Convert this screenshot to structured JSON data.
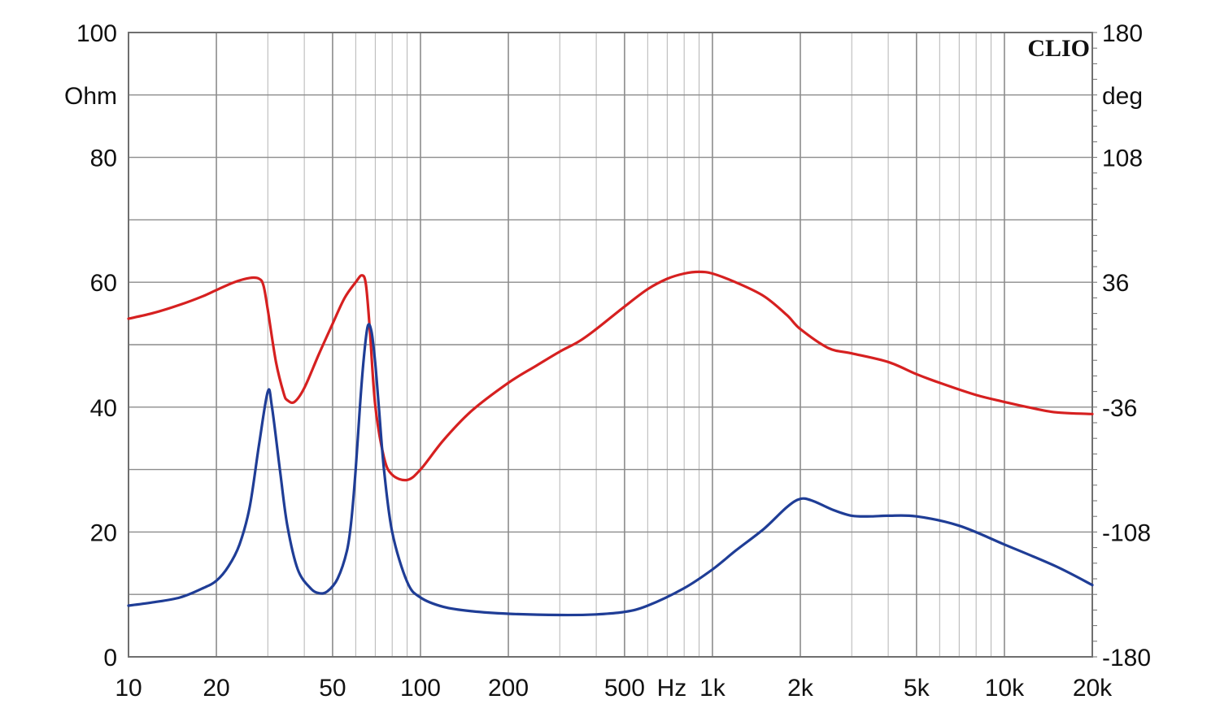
{
  "chart_data": {
    "type": "line",
    "brand": "CLIO",
    "x_scale": "log",
    "xlim": [
      10,
      20000
    ],
    "x_ticks": [
      {
        "value": 10,
        "label": "10"
      },
      {
        "value": 20,
        "label": "20"
      },
      {
        "value": 50,
        "label": "50"
      },
      {
        "value": 100,
        "label": "100"
      },
      {
        "value": 200,
        "label": "200"
      },
      {
        "value": 500,
        "label": "500"
      },
      {
        "value": 1000,
        "label": "1k"
      },
      {
        "value": 2000,
        "label": "2k"
      },
      {
        "value": 5000,
        "label": "5k"
      },
      {
        "value": 10000,
        "label": "10k"
      },
      {
        "value": 20000,
        "label": "20k"
      }
    ],
    "x_unit_label": "Hz",
    "y_left": {
      "unit": "Ohm",
      "range": [
        0,
        100
      ],
      "ticks": [
        {
          "value": 0,
          "label": "0"
        },
        {
          "value": 20,
          "label": "20"
        },
        {
          "value": 40,
          "label": "40"
        },
        {
          "value": 60,
          "label": "60"
        },
        {
          "value": 80,
          "label": "80"
        },
        {
          "value": 100,
          "label": "100"
        }
      ]
    },
    "y_right": {
      "unit": "deg",
      "range": [
        -180,
        180
      ],
      "ticks": [
        {
          "value": -180,
          "label": "-180"
        },
        {
          "value": -108,
          "label": "-108"
        },
        {
          "value": -36,
          "label": "-36"
        },
        {
          "value": 36,
          "label": "36"
        },
        {
          "value": 108,
          "label": "108"
        },
        {
          "value": 180,
          "label": "180"
        }
      ]
    },
    "grid": true,
    "series": [
      {
        "color": "#d62020",
        "axis": "right",
        "points": [
          [
            10,
            15
          ],
          [
            12,
            18
          ],
          [
            15,
            23
          ],
          [
            18,
            28
          ],
          [
            20,
            31.5
          ],
          [
            23,
            36
          ],
          [
            26,
            38.5
          ],
          [
            28,
            38
          ],
          [
            29,
            34
          ],
          [
            30,
            20
          ],
          [
            32,
            -10
          ],
          [
            34,
            -28
          ],
          [
            35,
            -32
          ],
          [
            37,
            -33
          ],
          [
            40,
            -25
          ],
          [
            45,
            -5
          ],
          [
            50,
            12
          ],
          [
            55,
            27
          ],
          [
            60,
            36
          ],
          [
            63,
            40
          ],
          [
            65,
            35
          ],
          [
            67,
            10
          ],
          [
            70,
            -35
          ],
          [
            75,
            -65
          ],
          [
            80,
            -75
          ],
          [
            90,
            -78
          ],
          [
            100,
            -72
          ],
          [
            120,
            -55
          ],
          [
            150,
            -38
          ],
          [
            200,
            -22
          ],
          [
            250,
            -12
          ],
          [
            300,
            -4
          ],
          [
            350,
            2
          ],
          [
            400,
            9
          ],
          [
            500,
            22
          ],
          [
            600,
            32
          ],
          [
            700,
            38
          ],
          [
            800,
            41
          ],
          [
            900,
            42
          ],
          [
            1000,
            41
          ],
          [
            1200,
            36
          ],
          [
            1500,
            28
          ],
          [
            1800,
            17
          ],
          [
            2000,
            9
          ],
          [
            2500,
            -2
          ],
          [
            3000,
            -5
          ],
          [
            4000,
            -10
          ],
          [
            5000,
            -17
          ],
          [
            6000,
            -22
          ],
          [
            8000,
            -29
          ],
          [
            10000,
            -33
          ],
          [
            12000,
            -36
          ],
          [
            15000,
            -39
          ],
          [
            20000,
            -40
          ]
        ]
      },
      {
        "color": "#1f3d96",
        "axis": "left",
        "points": [
          [
            10,
            8.2
          ],
          [
            12,
            8.7
          ],
          [
            15,
            9.5
          ],
          [
            18,
            11
          ],
          [
            20,
            12.2
          ],
          [
            22,
            14.5
          ],
          [
            24,
            18
          ],
          [
            26,
            24
          ],
          [
            28,
            34
          ],
          [
            30,
            42.5
          ],
          [
            31,
            40
          ],
          [
            33,
            30
          ],
          [
            35,
            21
          ],
          [
            38,
            14
          ],
          [
            42,
            11
          ],
          [
            45,
            10.2
          ],
          [
            48,
            10.5
          ],
          [
            52,
            12.5
          ],
          [
            56,
            17
          ],
          [
            58,
            22
          ],
          [
            60,
            30
          ],
          [
            62,
            40
          ],
          [
            64,
            48
          ],
          [
            66,
            53
          ],
          [
            68,
            52
          ],
          [
            70,
            47
          ],
          [
            72,
            40
          ],
          [
            75,
            30
          ],
          [
            80,
            20
          ],
          [
            90,
            12
          ],
          [
            100,
            9.5
          ],
          [
            120,
            8
          ],
          [
            150,
            7.3
          ],
          [
            200,
            6.9
          ],
          [
            300,
            6.7
          ],
          [
            400,
            6.8
          ],
          [
            500,
            7.2
          ],
          [
            600,
            8.2
          ],
          [
            800,
            11
          ],
          [
            1000,
            14
          ],
          [
            1200,
            17
          ],
          [
            1500,
            20.5
          ],
          [
            1800,
            24
          ],
          [
            2000,
            25.3
          ],
          [
            2200,
            25
          ],
          [
            2600,
            23.5
          ],
          [
            3000,
            22.6
          ],
          [
            3500,
            22.5
          ],
          [
            4000,
            22.6
          ],
          [
            5000,
            22.5
          ],
          [
            7000,
            21
          ],
          [
            10000,
            18
          ],
          [
            15000,
            14.5
          ],
          [
            20000,
            11.5
          ]
        ]
      }
    ]
  }
}
